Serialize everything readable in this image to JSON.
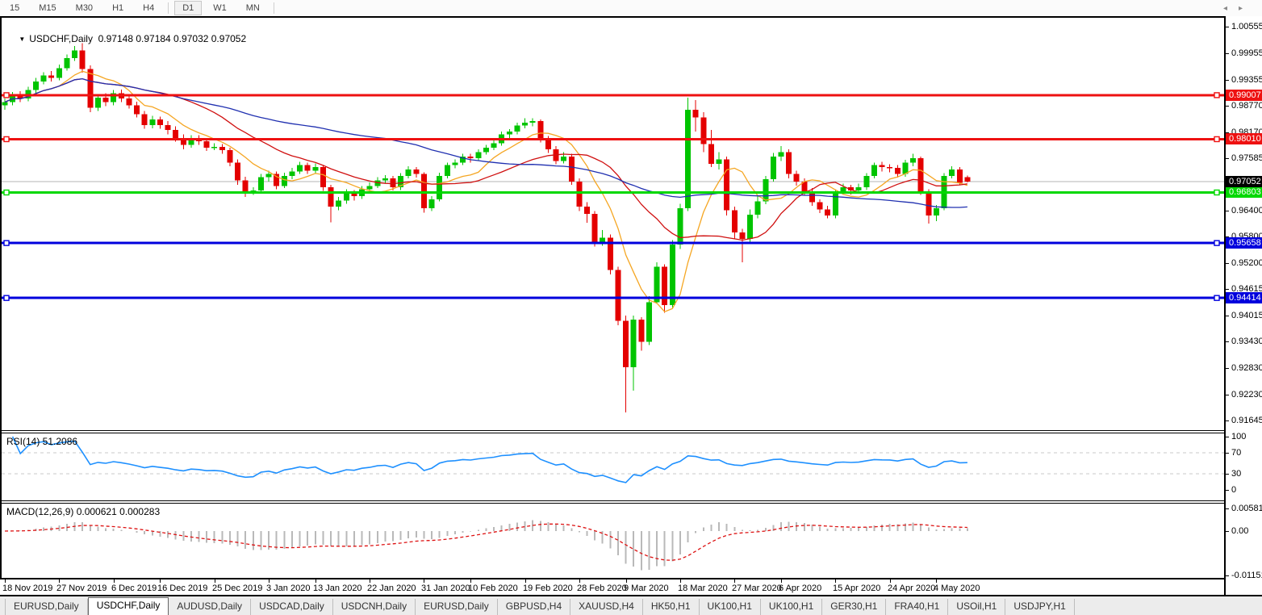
{
  "toolbar": {
    "timeframes": [
      {
        "label": "15",
        "active": false
      },
      {
        "label": "M15",
        "active": false
      },
      {
        "label": "M30",
        "active": false
      },
      {
        "label": "H1",
        "active": false
      },
      {
        "label": "H4",
        "active": false
      },
      {
        "label": "D1",
        "active": true
      },
      {
        "label": "W1",
        "active": false
      },
      {
        "label": "MN",
        "active": false
      }
    ]
  },
  "chart_header": {
    "dropdown_icon": "▼",
    "symbol_label": "USDCHF,Daily",
    "ohlc_text": "0.97148 0.97184 0.97032 0.97052"
  },
  "indicator_labels": {
    "rsi": "RSI(14) 51.2086",
    "macd": "MACD(12,26,9) 0.000621 0.000283"
  },
  "price_axis": {
    "ticks": [
      "1.00555",
      "0.99955",
      "0.99355",
      "0.98770",
      "0.98170",
      "0.97585",
      "0.96985",
      "0.96400",
      "0.95800",
      "0.95200",
      "0.94615",
      "0.94015",
      "0.93430",
      "0.92830",
      "0.92230",
      "0.91645"
    ]
  },
  "rsi_axis": {
    "ticks": [
      "100",
      "70",
      "30",
      "0"
    ]
  },
  "macd_axis": {
    "ticks": [
      {
        "text": "0.005818",
        "value": 0.005818
      },
      {
        "text": "0.00",
        "value": 0
      },
      {
        "text": "-0.011514",
        "value": -0.011514
      }
    ]
  },
  "x_axis": {
    "labels": [
      {
        "text": "18 Nov 2019",
        "index": 0
      },
      {
        "text": "27 Nov 2019",
        "index": 7
      },
      {
        "text": "6 Dec 2019",
        "index": 14
      },
      {
        "text": "16 Dec 2019",
        "index": 20
      },
      {
        "text": "25 Dec 2019",
        "index": 27
      },
      {
        "text": "3 Jan 2020",
        "index": 34
      },
      {
        "text": "13 Jan 2020",
        "index": 40
      },
      {
        "text": "22 Jan 2020",
        "index": 47
      },
      {
        "text": "31 Jan 2020",
        "index": 54
      },
      {
        "text": "10 Feb 2020",
        "index": 60
      },
      {
        "text": "19 Feb 2020",
        "index": 67
      },
      {
        "text": "28 Feb 2020",
        "index": 74
      },
      {
        "text": "9 Mar 2020",
        "index": 80
      },
      {
        "text": "18 Mar 2020",
        "index": 87
      },
      {
        "text": "27 Mar 2020",
        "index": 94
      },
      {
        "text": "6 Apr 2020",
        "index": 100
      },
      {
        "text": "15 Apr 2020",
        "index": 107
      },
      {
        "text": "24 Apr 2020",
        "index": 114
      },
      {
        "text": "4 May 2020",
        "index": 120
      }
    ]
  },
  "tab_bar": {
    "tabs": [
      {
        "label": "EURUSD,Daily",
        "active": false
      },
      {
        "label": "USDCHF,Daily",
        "active": true
      },
      {
        "label": "AUDUSD,Daily",
        "active": false
      },
      {
        "label": "USDCAD,Daily",
        "active": false
      },
      {
        "label": "USDCNH,Daily",
        "active": false
      },
      {
        "label": "EURUSD,Daily",
        "active": false
      },
      {
        "label": "GBPUSD,H4",
        "active": false
      },
      {
        "label": "XAUUSD,H4",
        "active": false
      },
      {
        "label": "HK50,H1",
        "active": false
      },
      {
        "label": "UK100,H1",
        "active": false
      },
      {
        "label": "UK100,H1",
        "active": false
      },
      {
        "label": "GER30,H1",
        "active": false
      },
      {
        "label": "FRA40,H1",
        "active": false
      },
      {
        "label": "USOil,H1",
        "active": false
      },
      {
        "label": "USDJPY,H1",
        "active": false
      }
    ],
    "scroll_left_icon": "◂",
    "scroll_right_icon": "▸"
  },
  "colors": {
    "candle_up": "#00c400",
    "candle_down": "#e40000",
    "ma_fast": "#f5a623",
    "ma_mid": "#d01010",
    "ma_slow": "#2030b0",
    "hline_red": "#ee1111",
    "hline_green": "#00d800",
    "hline_blue": "#0000dd",
    "current_line": "#b4b4b4",
    "current_chip": "#000000",
    "rsi_line": "#1e90ff",
    "level_dash": "#c8c8c8",
    "macd_hist": "#b9b9b9",
    "macd_signal": "#dd1111"
  },
  "chart_data": {
    "type": "candlestick",
    "symbol": "USDCHF",
    "timeframe": "Daily",
    "price_range": {
      "min": 0.9142,
      "max": 1.0076
    },
    "grid": false,
    "candles": [
      [
        0.9878,
        0.9893,
        0.9868,
        0.9885
      ],
      [
        0.9885,
        0.9908,
        0.9878,
        0.99
      ],
      [
        0.99,
        0.991,
        0.9885,
        0.9893
      ],
      [
        0.9893,
        0.992,
        0.9887,
        0.9912
      ],
      [
        0.9912,
        0.994,
        0.9905,
        0.9932
      ],
      [
        0.9932,
        0.9953,
        0.9925,
        0.9945
      ],
      [
        0.9945,
        0.9955,
        0.9932,
        0.994
      ],
      [
        0.994,
        0.997,
        0.9934,
        0.9962
      ],
      [
        0.9962,
        0.9993,
        0.9956,
        0.9985
      ],
      [
        0.9985,
        1.0012,
        0.9978,
        1.0002
      ],
      [
        1.0002,
        1.0018,
        0.9952,
        0.996
      ],
      [
        0.996,
        0.9968,
        0.9862,
        0.9872
      ],
      [
        0.9872,
        0.9902,
        0.9865,
        0.9895
      ],
      [
        0.9895,
        0.9905,
        0.9876,
        0.9885
      ],
      [
        0.9885,
        0.9912,
        0.9878,
        0.9905
      ],
      [
        0.9905,
        0.9913,
        0.9885,
        0.9893
      ],
      [
        0.9893,
        0.99,
        0.987,
        0.9878
      ],
      [
        0.9878,
        0.9886,
        0.985,
        0.9858
      ],
      [
        0.9858,
        0.9865,
        0.9825,
        0.9833
      ],
      [
        0.9833,
        0.9854,
        0.9826,
        0.9846
      ],
      [
        0.9846,
        0.9852,
        0.9825,
        0.9833
      ],
      [
        0.9833,
        0.9842,
        0.9812,
        0.9822
      ],
      [
        0.9822,
        0.983,
        0.9795,
        0.9803
      ],
      [
        0.9803,
        0.9812,
        0.9778,
        0.9788
      ],
      [
        0.9788,
        0.981,
        0.9782,
        0.9802
      ],
      [
        0.9802,
        0.981,
        0.9788,
        0.9796
      ],
      [
        0.9796,
        0.9803,
        0.9774,
        0.9782
      ],
      [
        0.9782,
        0.9792,
        0.9776,
        0.9784
      ],
      [
        0.9784,
        0.979,
        0.9768,
        0.9776
      ],
      [
        0.9776,
        0.9782,
        0.974,
        0.9748
      ],
      [
        0.9748,
        0.9755,
        0.9698,
        0.9708
      ],
      [
        0.9708,
        0.9716,
        0.967,
        0.9682
      ],
      [
        0.9682,
        0.9692,
        0.9675,
        0.9685
      ],
      [
        0.9685,
        0.9722,
        0.9678,
        0.9715
      ],
      [
        0.9715,
        0.973,
        0.9705,
        0.9722
      ],
      [
        0.9722,
        0.9728,
        0.9688,
        0.9695
      ],
      [
        0.9695,
        0.9725,
        0.969,
        0.9718
      ],
      [
        0.9718,
        0.9736,
        0.971,
        0.9728
      ],
      [
        0.9728,
        0.975,
        0.9722,
        0.9742
      ],
      [
        0.9742,
        0.9748,
        0.9722,
        0.973
      ],
      [
        0.973,
        0.9746,
        0.9724,
        0.9738
      ],
      [
        0.9738,
        0.9742,
        0.9684,
        0.9692
      ],
      [
        0.9692,
        0.9698,
        0.9613,
        0.9648
      ],
      [
        0.9648,
        0.967,
        0.964,
        0.9662
      ],
      [
        0.9662,
        0.9688,
        0.9655,
        0.968
      ],
      [
        0.968,
        0.9686,
        0.9662,
        0.9672
      ],
      [
        0.9672,
        0.9695,
        0.9666,
        0.9688
      ],
      [
        0.9688,
        0.9703,
        0.9682,
        0.9695
      ],
      [
        0.9695,
        0.9715,
        0.969,
        0.9708
      ],
      [
        0.9708,
        0.972,
        0.97,
        0.9712
      ],
      [
        0.9712,
        0.9718,
        0.9685,
        0.9692
      ],
      [
        0.9692,
        0.9724,
        0.9686,
        0.9718
      ],
      [
        0.9718,
        0.974,
        0.9712,
        0.9732
      ],
      [
        0.9732,
        0.9738,
        0.9714,
        0.9722
      ],
      [
        0.9722,
        0.9726,
        0.9635,
        0.9645
      ],
      [
        0.9645,
        0.9672,
        0.9638,
        0.9665
      ],
      [
        0.9665,
        0.9725,
        0.966,
        0.9718
      ],
      [
        0.9718,
        0.9748,
        0.9712,
        0.9742
      ],
      [
        0.9742,
        0.9755,
        0.9735,
        0.9748
      ],
      [
        0.9748,
        0.9768,
        0.9742,
        0.9762
      ],
      [
        0.9762,
        0.9768,
        0.9748,
        0.9758
      ],
      [
        0.9758,
        0.9778,
        0.9752,
        0.9772
      ],
      [
        0.9772,
        0.9788,
        0.9766,
        0.9782
      ],
      [
        0.9782,
        0.9798,
        0.9776,
        0.9792
      ],
      [
        0.9792,
        0.9818,
        0.9786,
        0.9812
      ],
      [
        0.9812,
        0.9824,
        0.9804,
        0.9818
      ],
      [
        0.9818,
        0.9838,
        0.9812,
        0.9832
      ],
      [
        0.9832,
        0.9848,
        0.9826,
        0.9838
      ],
      [
        0.9838,
        0.9848,
        0.983,
        0.9842
      ],
      [
        0.9842,
        0.9846,
        0.9794,
        0.9802
      ],
      [
        0.9802,
        0.9808,
        0.977,
        0.9778
      ],
      [
        0.9778,
        0.9785,
        0.9744,
        0.9752
      ],
      [
        0.9752,
        0.9772,
        0.9746,
        0.9762
      ],
      [
        0.9762,
        0.9768,
        0.9698,
        0.9705
      ],
      [
        0.9705,
        0.9712,
        0.9638,
        0.9648
      ],
      [
        0.9648,
        0.9658,
        0.9612,
        0.9632
      ],
      [
        0.9632,
        0.9638,
        0.9558,
        0.9568
      ],
      [
        0.9568,
        0.9595,
        0.956,
        0.9578
      ],
      [
        0.9578,
        0.9585,
        0.9495,
        0.9505
      ],
      [
        0.9505,
        0.9512,
        0.938,
        0.939
      ],
      [
        0.939,
        0.9402,
        0.9182,
        0.9285
      ],
      [
        0.9285,
        0.9402,
        0.9232,
        0.9392
      ],
      [
        0.9392,
        0.9398,
        0.9322,
        0.9342
      ],
      [
        0.9342,
        0.9445,
        0.9335,
        0.9432
      ],
      [
        0.9432,
        0.9522,
        0.9428,
        0.9512
      ],
      [
        0.9512,
        0.9518,
        0.9408,
        0.9425
      ],
      [
        0.9425,
        0.9572,
        0.9418,
        0.9562
      ],
      [
        0.9562,
        0.9655,
        0.9552,
        0.9645
      ],
      [
        0.9645,
        0.9895,
        0.9638,
        0.9868
      ],
      [
        0.9868,
        0.989,
        0.9818,
        0.985
      ],
      [
        0.985,
        0.9862,
        0.9772,
        0.979
      ],
      [
        0.979,
        0.9822,
        0.9738,
        0.9745
      ],
      [
        0.9745,
        0.9772,
        0.9732,
        0.9755
      ],
      [
        0.9755,
        0.9762,
        0.9628,
        0.964
      ],
      [
        0.964,
        0.9648,
        0.9575,
        0.959
      ],
      [
        0.959,
        0.9598,
        0.9522,
        0.9575
      ],
      [
        0.9575,
        0.9642,
        0.9568,
        0.963
      ],
      [
        0.963,
        0.9672,
        0.9622,
        0.966
      ],
      [
        0.966,
        0.9718,
        0.9654,
        0.971
      ],
      [
        0.971,
        0.977,
        0.9705,
        0.9762
      ],
      [
        0.9762,
        0.9785,
        0.9752,
        0.9772
      ],
      [
        0.9772,
        0.9778,
        0.9712,
        0.9722
      ],
      [
        0.9722,
        0.973,
        0.9696,
        0.9705
      ],
      [
        0.9705,
        0.9712,
        0.9674,
        0.9682
      ],
      [
        0.9682,
        0.969,
        0.965,
        0.9658
      ],
      [
        0.9658,
        0.9665,
        0.9634,
        0.9642
      ],
      [
        0.9642,
        0.965,
        0.9622,
        0.9628
      ],
      [
        0.9628,
        0.9688,
        0.9622,
        0.9682
      ],
      [
        0.9682,
        0.97,
        0.9676,
        0.9692
      ],
      [
        0.9692,
        0.9698,
        0.9676,
        0.9685
      ],
      [
        0.9685,
        0.97,
        0.9678,
        0.9692
      ],
      [
        0.9692,
        0.9724,
        0.9686,
        0.9718
      ],
      [
        0.9718,
        0.9748,
        0.9712,
        0.9742
      ],
      [
        0.9742,
        0.975,
        0.9728,
        0.9738
      ],
      [
        0.9738,
        0.9744,
        0.9726,
        0.9736
      ],
      [
        0.9736,
        0.9742,
        0.9714,
        0.9722
      ],
      [
        0.9722,
        0.9754,
        0.9716,
        0.9748
      ],
      [
        0.9748,
        0.9768,
        0.974,
        0.9758
      ],
      [
        0.9758,
        0.9762,
        0.9675,
        0.9682
      ],
      [
        0.9682,
        0.9688,
        0.961,
        0.9628
      ],
      [
        0.9628,
        0.9652,
        0.9615,
        0.9645
      ],
      [
        0.9645,
        0.9724,
        0.964,
        0.9718
      ],
      [
        0.9718,
        0.974,
        0.9712,
        0.9732
      ],
      [
        0.9732,
        0.9738,
        0.9698,
        0.9702
      ],
      [
        0.97148,
        0.97184,
        0.97032,
        0.97052
      ]
    ],
    "moving_averages": [
      {
        "period": 8,
        "color_key": "ma_fast"
      },
      {
        "period": 20,
        "color_key": "ma_mid"
      },
      {
        "period": 50,
        "color_key": "ma_slow"
      }
    ],
    "horizontal_lines": [
      {
        "price": 0.99007,
        "label": "0.99007",
        "color_key": "hline_red",
        "width": 3
      },
      {
        "price": 0.9801,
        "label": "0.98010",
        "color_key": "hline_red",
        "width": 3
      },
      {
        "price": 0.96803,
        "label": "0.96803",
        "color_key": "hline_green",
        "width": 3
      },
      {
        "price": 0.95658,
        "label": "0.95658",
        "color_key": "hline_blue",
        "width": 3
      },
      {
        "price": 0.94414,
        "label": "0.94414",
        "color_key": "hline_blue",
        "width": 3
      }
    ],
    "current_price": {
      "value": 0.97052,
      "label": "0.97052"
    },
    "rsi": {
      "period": 14,
      "current": 51.2086,
      "levels": [
        30,
        70
      ],
      "range": [
        0,
        100
      ]
    },
    "macd": {
      "fast": 12,
      "slow": 26,
      "signal": 9,
      "current_main": 0.000621,
      "current_signal": 0.000283,
      "panel_max": 0.005818,
      "panel_min": -0.011514
    }
  }
}
